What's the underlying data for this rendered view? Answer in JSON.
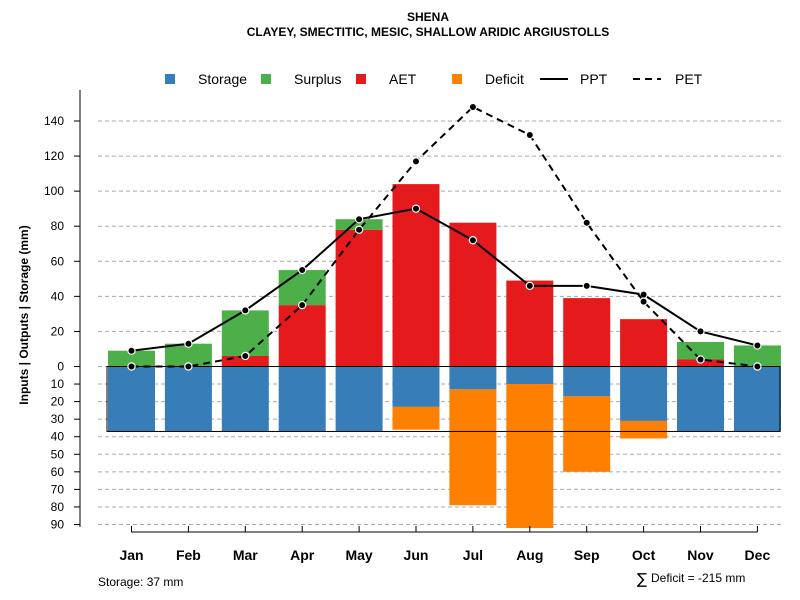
{
  "chart_data": {
    "type": "bar",
    "title": "SHENA",
    "subtitle": "CLAYEY, SMECTITIC, MESIC, SHALLOW ARIDIC ARGIUSTOLLS",
    "ylabel": "Inputs | Outputs | Storage    (mm)",
    "categories": [
      "Jan",
      "Feb",
      "Mar",
      "Apr",
      "May",
      "Jun",
      "Jul",
      "Aug",
      "Sep",
      "Oct",
      "Nov",
      "Dec"
    ],
    "ylim_top": [
      0,
      150
    ],
    "ylim_bottom": [
      0,
      90
    ],
    "yticks_top": [
      0,
      20,
      40,
      60,
      80,
      100,
      120,
      140
    ],
    "yticks_bottom": [
      10,
      20,
      30,
      40,
      50,
      60,
      70,
      80,
      90
    ],
    "storage_capacity": 37,
    "series": [
      {
        "name": "AET",
        "color": "#E41A1C",
        "values": [
          0,
          0,
          6,
          35,
          78,
          104,
          82,
          49,
          39,
          27,
          4,
          0
        ]
      },
      {
        "name": "Surplus",
        "color": "#4DAF4A",
        "values": [
          9,
          13,
          26,
          20,
          6,
          0,
          0,
          0,
          0,
          0,
          10,
          12
        ]
      },
      {
        "name": "Storage",
        "color": "#377EB8",
        "values": [
          37,
          37,
          37,
          37,
          37,
          23,
          13,
          10,
          17,
          31,
          37,
          37
        ]
      },
      {
        "name": "Deficit",
        "color": "#FF7F00",
        "values": [
          0,
          0,
          0,
          0,
          0,
          13,
          66,
          82,
          43,
          10,
          0,
          0
        ]
      },
      {
        "name": "PPT",
        "type": "line",
        "style": "solid",
        "values": [
          9,
          13,
          32,
          55,
          84,
          90,
          72,
          46,
          46,
          41,
          20,
          12
        ]
      },
      {
        "name": "PET",
        "type": "line",
        "style": "dashed",
        "values": [
          0,
          0,
          6,
          35,
          78,
          117,
          148,
          132,
          82,
          37,
          4,
          0
        ]
      }
    ],
    "legend": [
      "Storage",
      "Surplus",
      "AET",
      "Deficit",
      "PPT",
      "PET"
    ],
    "legend_position": "top",
    "grid": true
  },
  "notes": {
    "storage": "Storage: 37 mm",
    "deficit": "Deficit = -215 mm",
    "sum_symbol": "∑"
  }
}
